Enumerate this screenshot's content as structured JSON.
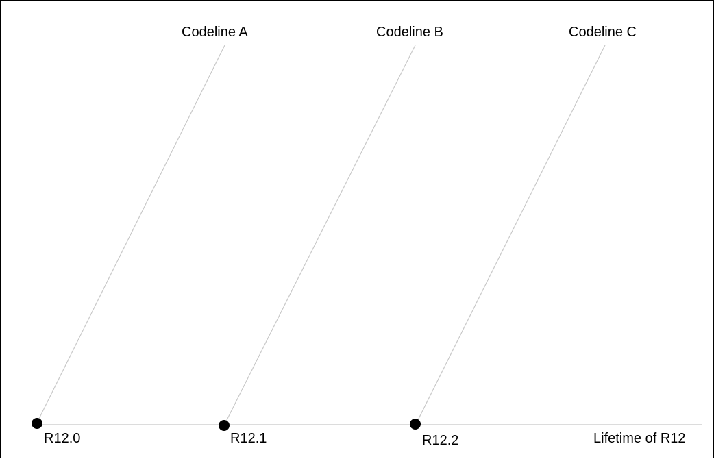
{
  "diagram": {
    "timeline_label": "Lifetime of R12",
    "line_color": "#c8c8c8",
    "dot_color": "#000000",
    "codelines": [
      {
        "name": "Codeline A",
        "release": "R12.0"
      },
      {
        "name": "Codeline B",
        "release": "R12.1"
      },
      {
        "name": "Codeline C",
        "release": "R12.2"
      }
    ]
  }
}
